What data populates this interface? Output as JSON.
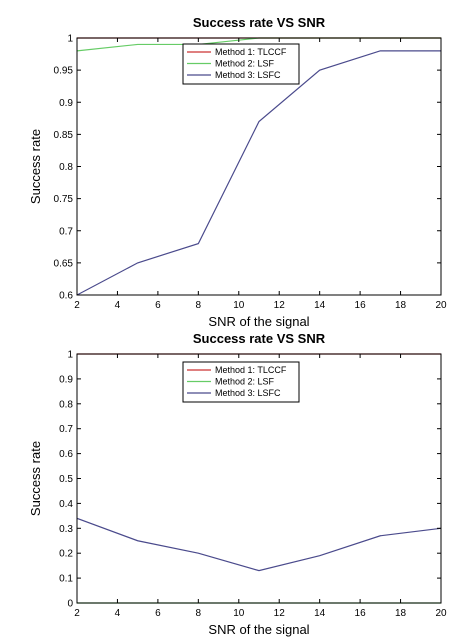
{
  "chart_data": [
    {
      "type": "line",
      "title": "Success rate VS SNR",
      "xlabel": "SNR of the signal",
      "ylabel": "Success rate",
      "xlim": [
        2,
        20
      ],
      "ylim": [
        0.6,
        1
      ],
      "xticks": [
        "2",
        "4",
        "6",
        "8",
        "10",
        "12",
        "14",
        "16",
        "18",
        "20"
      ],
      "yticks": [
        "0.6",
        "0.65",
        "0.7",
        "0.75",
        "0.8",
        "0.85",
        "0.9",
        "0.95",
        "1"
      ],
      "legend_position": "top-right",
      "grid": false,
      "x": [
        2,
        5,
        8,
        11,
        14,
        17,
        20
      ],
      "series": [
        {
          "name": "Method 1: TLCCF",
          "color": "#cc3333",
          "values": [
            1,
            1,
            1,
            1,
            1,
            1,
            1
          ]
        },
        {
          "name": "Method 2: LSF",
          "color": "#66cc66",
          "values": [
            0.98,
            0.99,
            0.99,
            1,
            1,
            1,
            1
          ]
        },
        {
          "name": "Method 3: LSFC",
          "color": "#4a4a8c",
          "values": [
            0.6,
            0.65,
            0.68,
            0.87,
            0.95,
            0.98,
            0.98
          ]
        }
      ]
    },
    {
      "type": "line",
      "title": "Success rate VS SNR",
      "xlabel": "SNR of the signal",
      "ylabel": "Success rate",
      "xlim": [
        2,
        20
      ],
      "ylim": [
        0,
        1
      ],
      "xticks": [
        "2",
        "4",
        "6",
        "8",
        "10",
        "12",
        "14",
        "16",
        "18",
        "20"
      ],
      "yticks": [
        "0",
        "0.1",
        "0.2",
        "0.3",
        "0.4",
        "0.5",
        "0.6",
        "0.7",
        "0.8",
        "0.9",
        "1"
      ],
      "legend_position": "top-right",
      "grid": false,
      "x": [
        2,
        5,
        8,
        11,
        14,
        17,
        20
      ],
      "series": [
        {
          "name": "Method 1: TLCCF",
          "color": "#cc3333",
          "values": [
            1,
            1,
            1,
            1,
            1,
            1,
            1
          ]
        },
        {
          "name": "Method 2: LSF",
          "color": "#66cc66",
          "values": [
            0,
            0,
            0,
            0,
            0,
            0,
            0
          ]
        },
        {
          "name": "Method 3: LSFC",
          "color": "#4a4a8c",
          "values": [
            0.34,
            0.25,
            0.2,
            0.13,
            0.19,
            0.27,
            0.3
          ]
        }
      ]
    }
  ]
}
